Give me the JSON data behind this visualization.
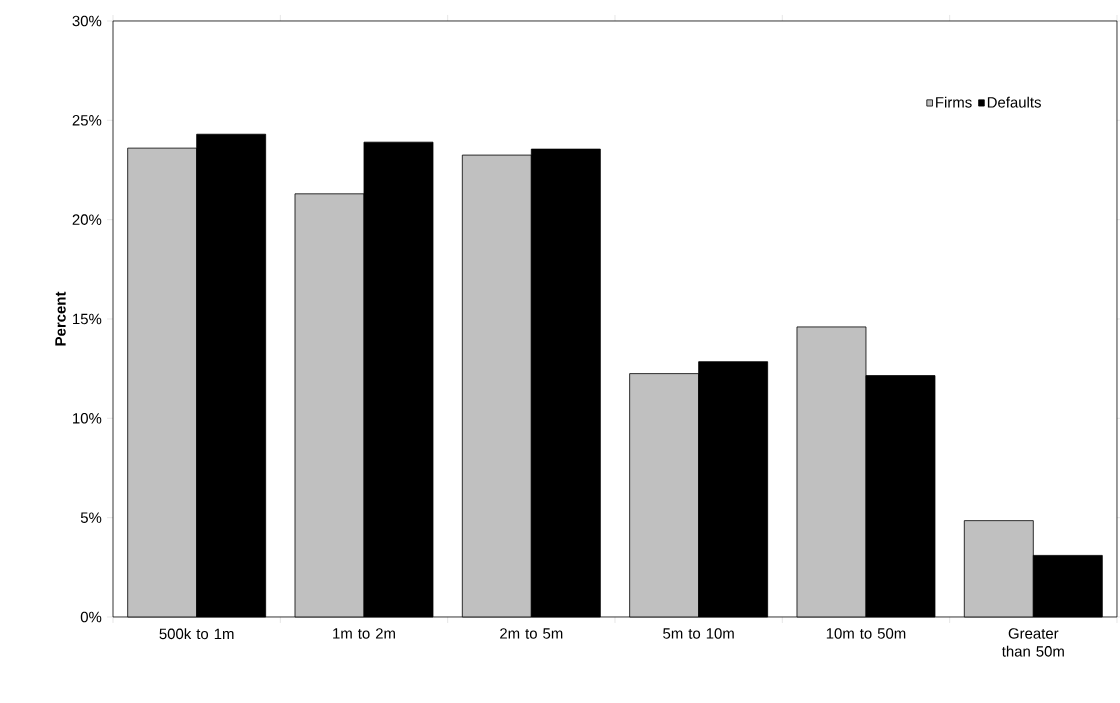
{
  "chart_data": {
    "type": "bar",
    "ylabel": "Percent",
    "categories": [
      "500k to 1m",
      "1m to 2m",
      "2m to 5m",
      "5m to 10m",
      "10m to 50m",
      "Greater than 50m"
    ],
    "series": [
      {
        "name": "Firms",
        "color": "#c0c0c0",
        "values": [
          23.6,
          21.3,
          23.25,
          12.25,
          14.6,
          4.85
        ]
      },
      {
        "name": "Defaults",
        "color": "#000000",
        "values": [
          24.3,
          23.9,
          23.55,
          12.85,
          12.15,
          3.1
        ]
      }
    ],
    "ylim": [
      0,
      30
    ],
    "yticks": [
      {
        "value": 0,
        "label": "0%"
      },
      {
        "value": 5,
        "label": "5%"
      },
      {
        "value": 10,
        "label": "10%"
      },
      {
        "value": 15,
        "label": "15%"
      },
      {
        "value": 20,
        "label": "20%"
      },
      {
        "value": 25,
        "label": "25%"
      },
      {
        "value": 30,
        "label": "30%"
      }
    ],
    "legend": "top right",
    "grid": false
  }
}
